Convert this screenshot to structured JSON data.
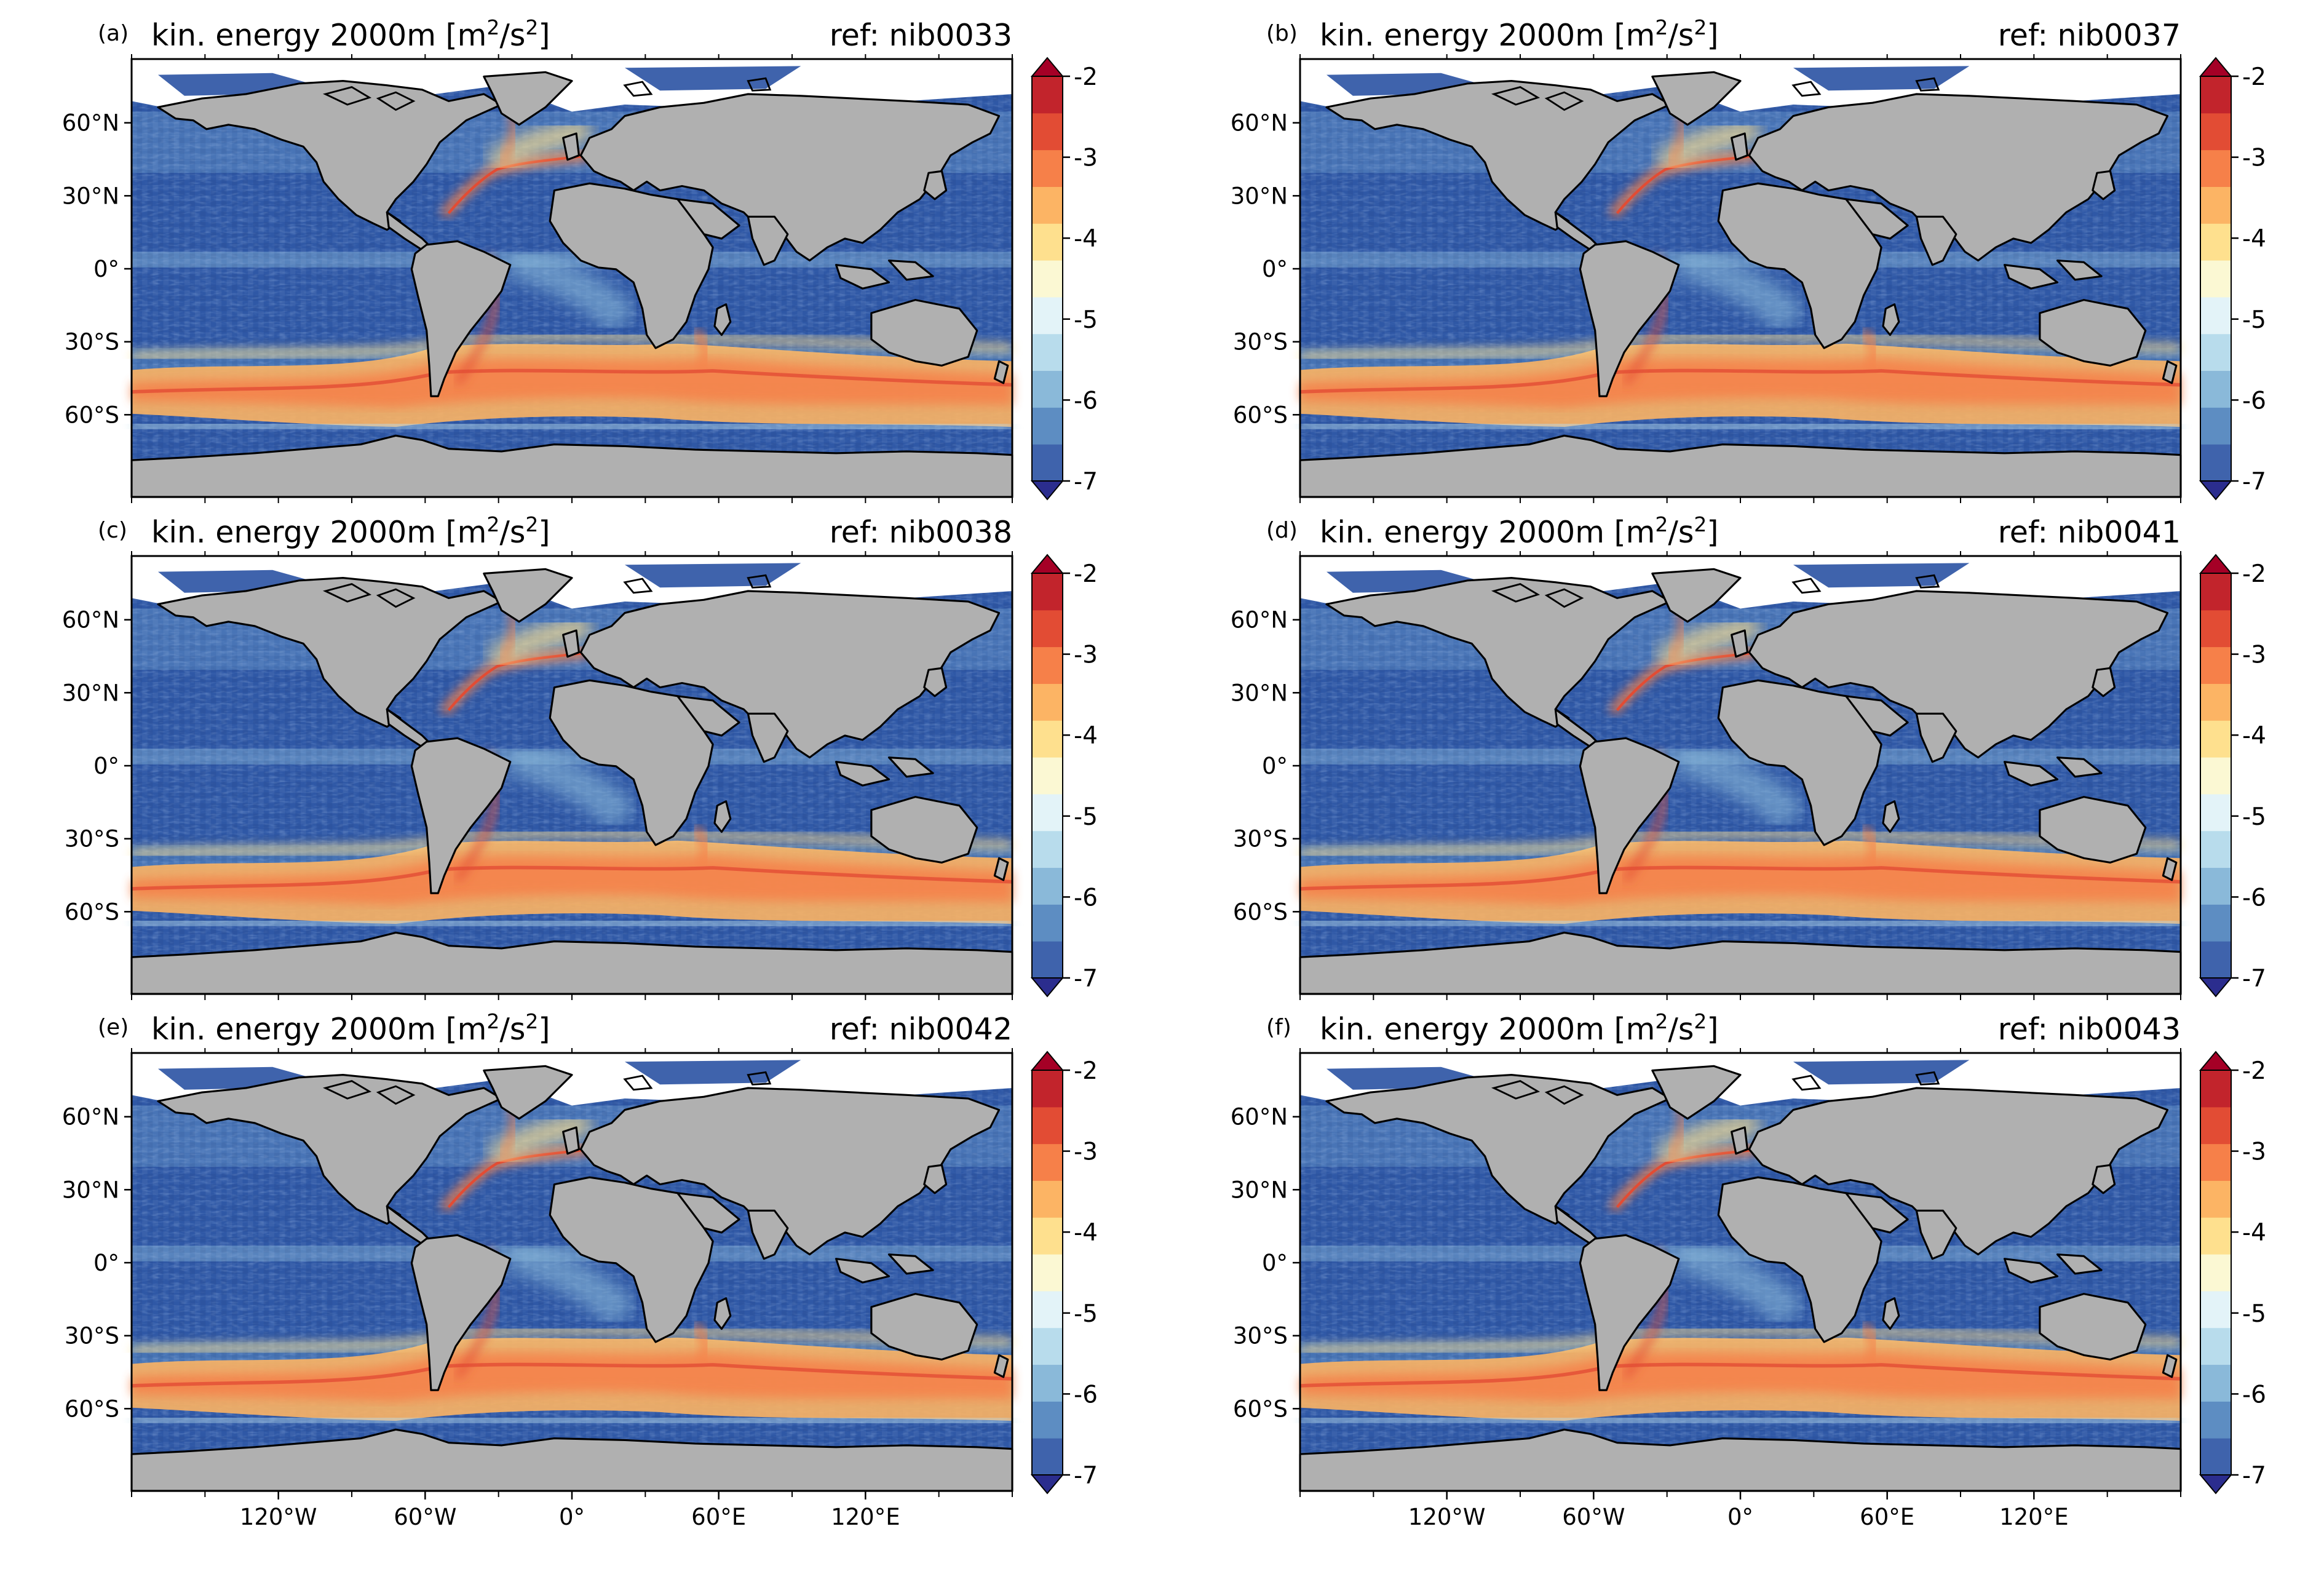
{
  "figure": {
    "panels": [
      {
        "letter": "(a)",
        "title": "kin. energy 2000m [m",
        "ref": "ref: nib0033"
      },
      {
        "letter": "(b)",
        "title": "kin. energy 2000m [m",
        "ref": "ref: nib0037"
      },
      {
        "letter": "(c)",
        "title": "kin. energy 2000m [m",
        "ref": "ref: nib0038"
      },
      {
        "letter": "(d)",
        "title": "kin. energy 2000m [m",
        "ref": "ref: nib0041"
      },
      {
        "letter": "(e)",
        "title": "kin. energy 2000m [m",
        "ref": "ref: nib0042"
      },
      {
        "letter": "(f)",
        "title": "kin. energy 2000m [m",
        "ref": "ref: nib0043"
      }
    ],
    "title_units": {
      "sup1": "2",
      "mid": "/s",
      "sup2": "2",
      "close": "]"
    },
    "lat_ticks": [
      "60°N",
      "30°N",
      "0°",
      "30°S",
      "60°S"
    ],
    "lon_ticks": [
      "120°W",
      "60°W",
      "0°",
      "60°E",
      "120°E"
    ],
    "colorbar": {
      "ticks": [
        "-2",
        "-3",
        "-4",
        "-5",
        "-6",
        "-7"
      ],
      "levels": [
        -7.0,
        -6.5,
        -6.0,
        -5.5,
        -5.0,
        -4.5,
        -4.0,
        -3.5,
        -3.0,
        -2.5,
        -2.0
      ],
      "colors": [
        "#3f63ac",
        "#5d8dc2",
        "#8ab9d9",
        "#b8dcec",
        "#e3f3f8",
        "#fbf8d3",
        "#fee08e",
        "#fcb464",
        "#f68049",
        "#e24c34",
        "#c2242c"
      ],
      "extend_low": "#2b2d8e",
      "extend_high": "#a50026"
    },
    "colors": {
      "land": "#b0b0b0",
      "no_data": "#ffffff",
      "coast": "#000000"
    }
  },
  "chart_data": {
    "type": "heatmap",
    "variable": "kin. energy 2000m [m2/s2]",
    "panels": [
      "nib0033",
      "nib0037",
      "nib0038",
      "nib0041",
      "nib0042",
      "nib0043"
    ],
    "colorbar_range": [
      -7,
      -2
    ],
    "colorbar_ticks": [
      -2,
      -3,
      -4,
      -5,
      -6,
      -7
    ],
    "x_ticks": [
      "120°W",
      "60°W",
      "0°",
      "60°E",
      "120°E"
    ],
    "y_ticks": [
      "60°N",
      "30°N",
      "0°",
      "30°S",
      "60°S"
    ]
  }
}
